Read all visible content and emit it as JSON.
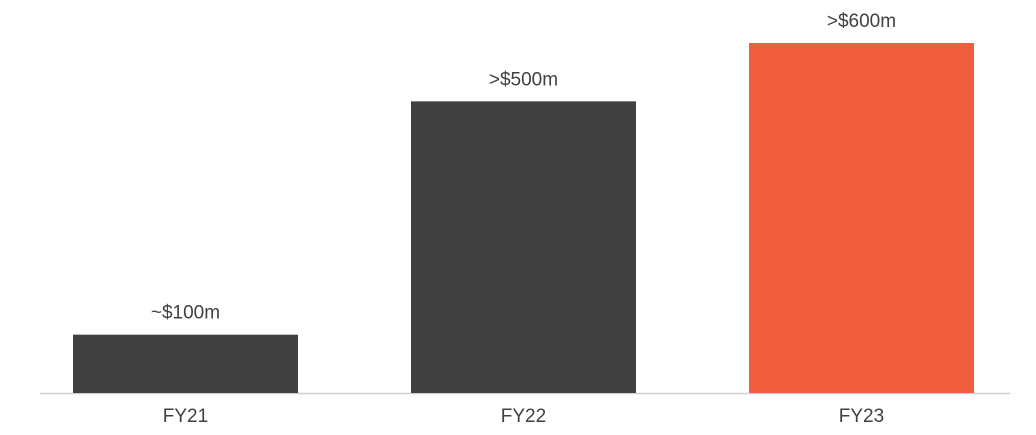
{
  "chart_data": {
    "type": "bar",
    "categories": [
      "FY21",
      "FY22",
      "FY23"
    ],
    "values": [
      100,
      500,
      600
    ],
    "value_labels": [
      "~$100m",
      ">$500m",
      ">$600m"
    ],
    "colors": [
      "#414042",
      "#414042",
      "#f15e3c"
    ]
  }
}
